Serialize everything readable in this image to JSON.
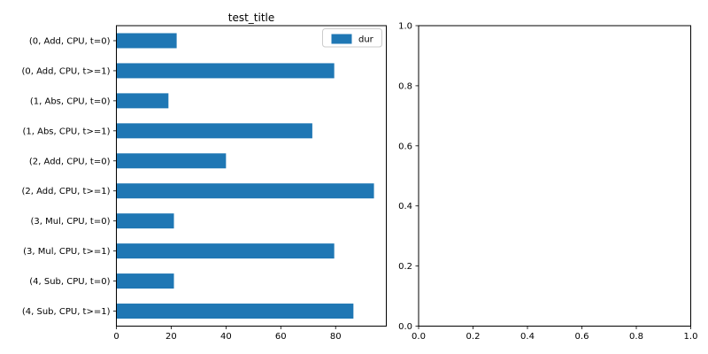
{
  "figure": {
    "background": "#ffffff"
  },
  "chart_data": [
    {
      "type": "bar",
      "orientation": "horizontal",
      "title": "test_title",
      "categories": [
        "(0, Add, CPU, t=0)",
        "(0, Add, CPU, t>=1)",
        "(1, Abs, CPU, t=0)",
        "(1, Abs, CPU, t>=1)",
        "(2, Add, CPU, t=0)",
        "(2, Add, CPU, t>=1)",
        "(3, Mul, CPU, t=0)",
        "(3, Mul, CPU, t>=1)",
        "(4, Sub, CPU, t=0)",
        "(4, Sub, CPU, t>=1)"
      ],
      "series": [
        {
          "name": "dur",
          "color": "#1f77b4",
          "values": [
            22,
            79.5,
            19,
            71.5,
            40,
            94,
            21,
            79.5,
            21,
            86.5
          ]
        }
      ],
      "xlabel": "",
      "ylabel": "",
      "xlim": [
        0,
        98.5
      ],
      "xtick_labels": [
        "0",
        "20",
        "40",
        "60",
        "80"
      ],
      "bar_rel_height": 0.5,
      "grid": false,
      "legend": {
        "position": "upper right",
        "entries": [
          "dur"
        ]
      }
    },
    {
      "type": "empty-axes",
      "title": "",
      "xlim": [
        0,
        1
      ],
      "ylim": [
        0,
        1
      ],
      "xtick_labels": [
        "0.0",
        "0.2",
        "0.4",
        "0.6",
        "0.8",
        "1.0"
      ],
      "ytick_labels": [
        "0.0",
        "0.2",
        "0.4",
        "0.6",
        "0.8",
        "1.0"
      ],
      "grid": false
    }
  ]
}
